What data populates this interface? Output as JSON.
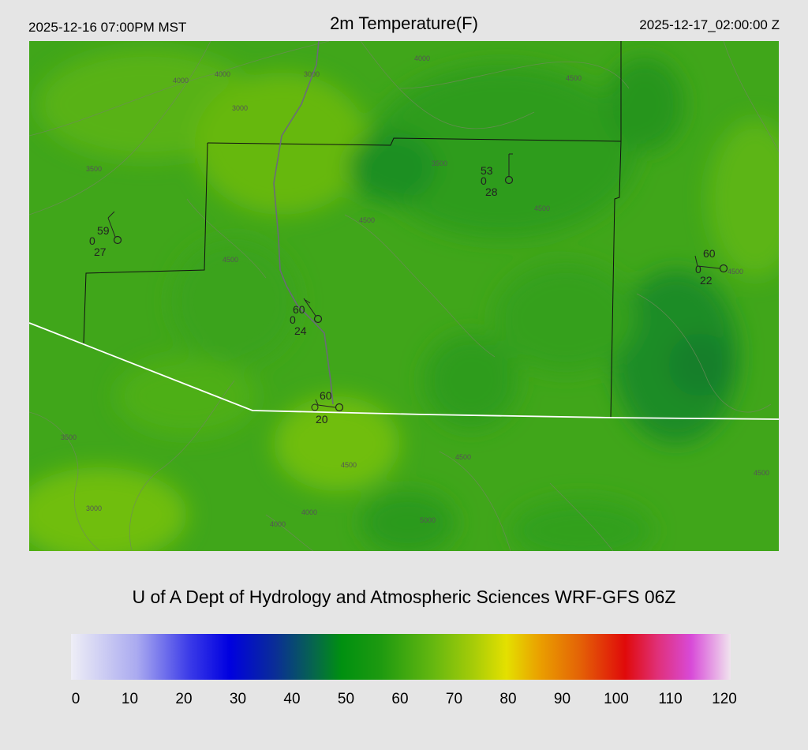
{
  "header": {
    "local_time": "2025-12-16 07:00PM MST",
    "title": "2m Temperature(F)",
    "utc_time": "2025-12-17_02:00:00 Z"
  },
  "credit": "U of A Dept of Hydrology and Atmospheric Sciences WRF-GFS 06Z",
  "colorbar": {
    "ticks": [
      "0",
      "10",
      "20",
      "30",
      "40",
      "50",
      "60",
      "70",
      "80",
      "90",
      "100",
      "110",
      "120"
    ],
    "min": 0,
    "max": 120
  },
  "stations": [
    {
      "temp": "59",
      "cloud": "0",
      "dew": "27"
    },
    {
      "temp": "53",
      "cloud": "0",
      "dew": "28"
    },
    {
      "temp": "60",
      "cloud": "0",
      "dew": "24"
    },
    {
      "temp": "60",
      "cloud": "0",
      "dew": "20"
    },
    {
      "temp": "60",
      "cloud": "0",
      "dew": "22"
    }
  ],
  "contour_labels": [
    "4000",
    "4000",
    "3000",
    "3000",
    "3500",
    "4000",
    "4500",
    "3500",
    "4500",
    "4500",
    "4500",
    "3500",
    "3000",
    "4500",
    "4000",
    "4500",
    "5000",
    "4000",
    "4500",
    "4500"
  ],
  "colors": {
    "background": "#e5e5e5",
    "map_base": "#3fa818",
    "boundary_county": "#111111",
    "boundary_state": "#ffffff"
  }
}
